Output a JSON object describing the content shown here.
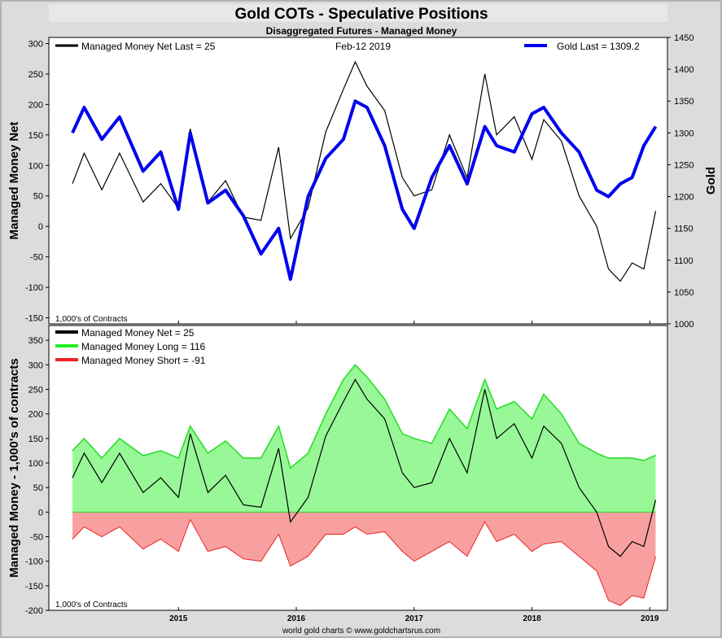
{
  "header": {
    "title": "Gold COTs - Speculative Positions",
    "subtitle": "Disaggregated Futures - Managed Money",
    "footer": "world gold charts © www.goldchartsrus.com"
  },
  "colors": {
    "frame_bg": "#dcdcdc",
    "gold_line": "#0000ee",
    "net_line": "#000000",
    "long_fill": "#98f898",
    "long_line": "#22dd22",
    "short_fill": "#f8a0a0",
    "short_line": "#ee2222"
  },
  "chart_data": [
    {
      "type": "line",
      "legend": {
        "net": "Managed Money Net   Last = 25",
        "date": "Feb-12  2019",
        "gold": "Gold Last = 1309.2"
      },
      "ylabel": "Managed Money Net",
      "y2label": "Gold",
      "unit_note": "1,000's of Contracts",
      "ylim": [
        -160,
        310
      ],
      "y2lim": [
        1000,
        1450
      ],
      "yticks": [
        -150,
        -100,
        -50,
        0,
        50,
        100,
        150,
        200,
        250,
        300
      ],
      "y2ticks": [
        1000,
        1050,
        1100,
        1150,
        1200,
        1250,
        1300,
        1350,
        1400,
        1450
      ],
      "x": [
        2014.1,
        2014.2,
        2014.35,
        2014.5,
        2014.7,
        2014.85,
        2015.0,
        2015.1,
        2015.25,
        2015.4,
        2015.55,
        2015.7,
        2015.85,
        2015.95,
        2016.1,
        2016.25,
        2016.4,
        2016.5,
        2016.6,
        2016.75,
        2016.9,
        2017.0,
        2017.15,
        2017.3,
        2017.45,
        2017.6,
        2017.7,
        2017.85,
        2018.0,
        2018.1,
        2018.25,
        2018.4,
        2018.55,
        2018.65,
        2018.75,
        2018.85,
        2018.95,
        2019.05
      ],
      "series": [
        {
          "name": "Managed Money Net",
          "values": [
            70,
            120,
            60,
            120,
            40,
            70,
            30,
            160,
            40,
            75,
            15,
            10,
            130,
            -20,
            30,
            155,
            225,
            270,
            230,
            190,
            80,
            50,
            60,
            150,
            80,
            250,
            150,
            180,
            110,
            175,
            140,
            50,
            0,
            -70,
            -90,
            -60,
            -70,
            25
          ]
        },
        {
          "name": "Gold",
          "values": [
            1300,
            1340,
            1290,
            1325,
            1240,
            1270,
            1180,
            1300,
            1190,
            1210,
            1170,
            1110,
            1150,
            1070,
            1200,
            1260,
            1290,
            1350,
            1340,
            1280,
            1180,
            1150,
            1230,
            1280,
            1220,
            1310,
            1280,
            1270,
            1330,
            1340,
            1300,
            1270,
            1210,
            1200,
            1220,
            1230,
            1280,
            1310
          ]
        }
      ]
    },
    {
      "type": "area",
      "legend": {
        "net": "Managed Money Net     = 25",
        "long": "Managed Money Long   = 116",
        "short": "Managed Money Short  = -91"
      },
      "ylabel": "Managed Money - 1,000's of contracts",
      "unit_note": "1,000's of Contracts",
      "ylim": [
        -200,
        380
      ],
      "yticks": [
        -200,
        -150,
        -100,
        -50,
        0,
        50,
        100,
        150,
        200,
        250,
        300,
        350
      ],
      "x": [
        2014.1,
        2014.2,
        2014.35,
        2014.5,
        2014.7,
        2014.85,
        2015.0,
        2015.1,
        2015.25,
        2015.4,
        2015.55,
        2015.7,
        2015.85,
        2015.95,
        2016.1,
        2016.25,
        2016.4,
        2016.5,
        2016.6,
        2016.75,
        2016.9,
        2017.0,
        2017.15,
        2017.3,
        2017.45,
        2017.6,
        2017.7,
        2017.85,
        2018.0,
        2018.1,
        2018.25,
        2018.4,
        2018.55,
        2018.65,
        2018.75,
        2018.85,
        2018.95,
        2019.05
      ],
      "x_ticks": [
        "2015",
        "2016",
        "2017",
        "2018",
        "2019"
      ],
      "x_tick_values": [
        2015,
        2016,
        2017,
        2018,
        2019
      ],
      "xlim": [
        2013.9,
        2019.15
      ],
      "series": [
        {
          "name": "Managed Money Long",
          "values": [
            125,
            150,
            110,
            150,
            115,
            125,
            110,
            175,
            120,
            145,
            110,
            110,
            175,
            90,
            120,
            200,
            270,
            300,
            275,
            230,
            160,
            150,
            140,
            210,
            170,
            270,
            210,
            225,
            190,
            240,
            200,
            140,
            120,
            110,
            110,
            110,
            105,
            116
          ]
        },
        {
          "name": "Managed Money Short",
          "values": [
            -55,
            -30,
            -50,
            -30,
            -75,
            -55,
            -80,
            -15,
            -80,
            -70,
            -95,
            -100,
            -45,
            -110,
            -90,
            -45,
            -45,
            -30,
            -45,
            -40,
            -80,
            -100,
            -80,
            -60,
            -90,
            -20,
            -60,
            -45,
            -80,
            -65,
            -60,
            -90,
            -120,
            -180,
            -190,
            -170,
            -175,
            -91
          ]
        },
        {
          "name": "Managed Money Net",
          "values": [
            70,
            120,
            60,
            120,
            40,
            70,
            30,
            160,
            40,
            75,
            15,
            10,
            130,
            -20,
            30,
            155,
            225,
            270,
            230,
            190,
            80,
            50,
            60,
            150,
            80,
            250,
            150,
            180,
            110,
            175,
            140,
            50,
            0,
            -70,
            -90,
            -60,
            -70,
            25
          ]
        }
      ]
    }
  ]
}
